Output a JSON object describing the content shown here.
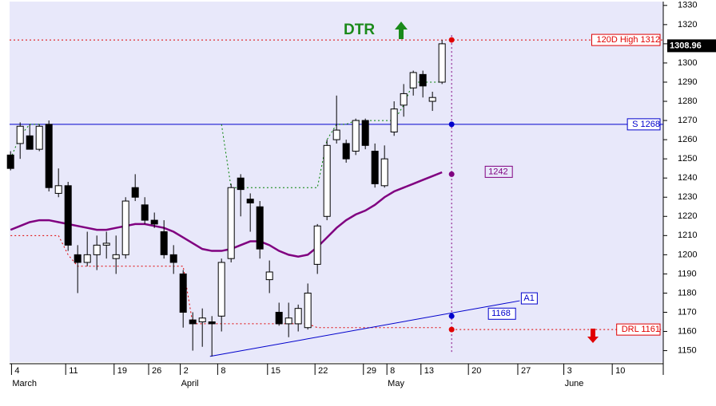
{
  "chart_data": {
    "type": "candlestick",
    "x": [
      0,
      1,
      2,
      3,
      4,
      5,
      6,
      7,
      8,
      9,
      10,
      11,
      12,
      13,
      14,
      15,
      16,
      17,
      18,
      19,
      20,
      21,
      22,
      23,
      24,
      25,
      26,
      27,
      28,
      29,
      30,
      31,
      32,
      33,
      34,
      35,
      36,
      37,
      38,
      39,
      40,
      41,
      42,
      43,
      44,
      45
    ],
    "open": [
      1252,
      1258,
      1262,
      1255,
      1268,
      1232,
      1236,
      1200,
      1196,
      1200,
      1205,
      1198,
      1200,
      1235,
      1226,
      1218,
      1212,
      1200,
      1190,
      1166,
      1165,
      1165,
      1168,
      1198,
      1240,
      1229,
      1225,
      1187,
      1170,
      1164,
      1164,
      1162,
      1195,
      1220,
      1260,
      1258,
      1254,
      1270,
      1254,
      1236,
      1264,
      1278,
      1287,
      1294,
      1280,
      1290
    ],
    "high": [
      1254,
      1269,
      1268,
      1268,
      1270,
      1245,
      1238,
      1205,
      1212,
      1210,
      1212,
      1210,
      1230,
      1242,
      1230,
      1222,
      1218,
      1205,
      1192,
      1170,
      1172,
      1168,
      1198,
      1237,
      1242,
      1232,
      1228,
      1197,
      1175,
      1175,
      1174,
      1185,
      1216,
      1260,
      1283,
      1260,
      1271,
      1271,
      1258,
      1257,
      1280,
      1289,
      1296,
      1296,
      1285,
      1312
    ],
    "low": [
      1244,
      1250,
      1255,
      1254,
      1233,
      1230,
      1202,
      1180,
      1194,
      1192,
      1198,
      1190,
      1198,
      1228,
      1216,
      1214,
      1198,
      1190,
      1162,
      1150,
      1152,
      1147,
      1160,
      1196,
      1220,
      1212,
      1198,
      1180,
      1163,
      1157,
      1160,
      1161,
      1190,
      1218,
      1258,
      1248,
      1252,
      1255,
      1235,
      1235,
      1262,
      1272,
      1283,
      1282,
      1275,
      1289
    ],
    "close": [
      1245,
      1267,
      1255,
      1267,
      1235,
      1236,
      1205,
      1196,
      1200,
      1205,
      1206,
      1200,
      1228,
      1230,
      1218,
      1216,
      1200,
      1196,
      1170,
      1164,
      1167,
      1164,
      1196,
      1235,
      1234,
      1227,
      1203,
      1191,
      1164,
      1167,
      1172,
      1180,
      1215,
      1257,
      1265,
      1250,
      1270,
      1257,
      1237,
      1250,
      1276,
      1284,
      1295,
      1288,
      1282,
      1310
    ],
    "series": [
      {
        "color": "#800080",
        "style": "solid",
        "values": [
          1213,
          1215,
          1217,
          1218,
          1218,
          1217,
          1216,
          1215,
          1214,
          1213,
          1213,
          1214,
          1215,
          1216,
          1216,
          1215,
          1214,
          1212,
          1209,
          1206,
          1203,
          1202,
          1202,
          1203,
          1205,
          1207,
          1207,
          1205,
          1202,
          1200,
          1199,
          1200,
          1204,
          1209,
          1214,
          1218,
          1221,
          1223,
          1226,
          1230,
          1233,
          1235,
          1237,
          1239,
          1241,
          1243
        ]
      },
      {
        "color": "#008000",
        "style": "dotted",
        "values": [
          1250,
          1262,
          1268,
          1268,
          null,
          null,
          null,
          null,
          null,
          null,
          null,
          null,
          null,
          null,
          null,
          null,
          null,
          null,
          null,
          null,
          null,
          null,
          1268,
          1235,
          1235,
          1235,
          1235,
          1235,
          1235,
          1235,
          1235,
          1235,
          1235,
          1260,
          1268,
          1268,
          1270,
          1270,
          1270,
          1270,
          1270,
          1278,
          1290,
          1290,
          1290,
          1290
        ]
      },
      {
        "color": "#e00000",
        "style": "dotted",
        "values": [
          1210,
          1210,
          1210,
          1210,
          1210,
          1210,
          1200,
          1194,
          1194,
          1194,
          1194,
          1194,
          1194,
          1194,
          1194,
          1194,
          1194,
          1194,
          1194,
          1164,
          1164,
          1164,
          1164,
          1164,
          1164,
          1164,
          1164,
          1164,
          1164,
          1164,
          1164,
          1164,
          1162,
          1162,
          1162,
          1162,
          1162,
          1162,
          1162,
          1162,
          1162,
          1162,
          1162,
          1162,
          1162,
          1162
        ]
      }
    ],
    "levels": [
      {
        "label": "120D High 1312",
        "value": 1312,
        "color": "#e00000",
        "style": "dotted"
      },
      {
        "label": "S 1268",
        "value": 1268,
        "color": "#0000cc",
        "style": "solid"
      },
      {
        "label": "DRL 1161",
        "value": 1161,
        "color": "#e00000",
        "style": "dotted"
      }
    ],
    "trendline": {
      "label": "A1",
      "color": "#0000cc",
      "x": [
        20.8,
        53.1
      ],
      "values": [
        1147,
        1176
      ]
    },
    "marker_x": 46,
    "markers": [
      {
        "value": 1312,
        "color": "#e00000"
      },
      {
        "value": 1268,
        "color": "#0000cc"
      },
      {
        "value": 1242,
        "color": "#800080",
        "label": 1242
      },
      {
        "value": 1168,
        "color": "#0000cc",
        "label": 1168
      },
      {
        "value": 1161,
        "color": "#e00000"
      }
    ],
    "annotation": "DTR",
    "last_price": 1308.96,
    "xlim": [
      -0.1,
      68.07
    ],
    "xticks": [
      {
        "value": 0.1,
        "label": "4"
      },
      {
        "value": 5.75,
        "label": "11"
      },
      {
        "value": 10.8,
        "label": "19"
      },
      {
        "value": 14.4,
        "label": "26"
      },
      {
        "value": 17.7,
        "label": "2"
      },
      {
        "value": 21.6,
        "label": "8"
      },
      {
        "value": 26.8,
        "label": "15"
      },
      {
        "value": 31.75,
        "label": "22"
      },
      {
        "value": 36.8,
        "label": "29"
      },
      {
        "value": 39.25,
        "label": "8"
      },
      {
        "value": 42.8,
        "label": "13"
      },
      {
        "value": 47.75,
        "label": "20"
      },
      {
        "value": 52.9,
        "label": "27"
      },
      {
        "value": 57.7,
        "label": "3"
      },
      {
        "value": 62.75,
        "label": "10"
      }
    ],
    "months": [
      {
        "value": 0.1,
        "label": "March"
      },
      {
        "value": 17.7,
        "label": "April"
      },
      {
        "value": 39.25,
        "label": "May"
      },
      {
        "value": 57.7,
        "label": "June"
      }
    ],
    "ylim": [
      1144,
      1332
    ],
    "yticks": [
      1150,
      1160,
      1170,
      1180,
      1190,
      1200,
      1210,
      1220,
      1230,
      1240,
      1250,
      1260,
      1270,
      1280,
      1290,
      1300,
      1310,
      1320,
      1330
    ]
  }
}
